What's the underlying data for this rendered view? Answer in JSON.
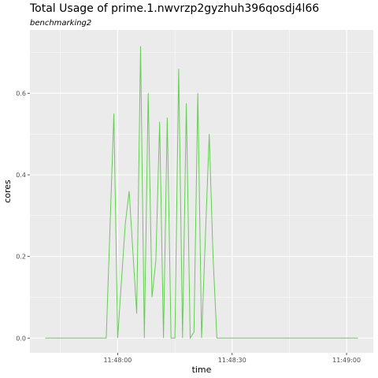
{
  "chart_data": {
    "type": "line",
    "title": "Total Usage of prime.1.nwvrzp2gyzhuh396qosdj4l66",
    "subtitle": "benchmarking2",
    "xlabel": "time",
    "ylabel": "cores",
    "x_ticks": [
      "11:48:00",
      "11:48:30",
      "11:49:00"
    ],
    "y_ticks": [
      "0.0",
      "0.2",
      "0.4",
      "0.6"
    ],
    "xlim": [
      "11:47:37",
      "11:49:07"
    ],
    "ylim": [
      -0.036,
      0.755
    ],
    "grid": true,
    "legend": "none",
    "series_color": "#66cc55",
    "panel_color": "#ebebeb",
    "series": [
      {
        "x": [
          "11:47:41",
          "11:47:57",
          "11:47:59",
          "11:48:00",
          "11:48:02",
          "11:48:03",
          "11:48:05",
          "11:48:06",
          "11:48:07",
          "11:48:08",
          "11:48:09",
          "11:48:10",
          "11:48:11",
          "11:48:12",
          "11:48:13",
          "11:48:14",
          "11:48:15",
          "11:48:16",
          "11:48:17",
          "11:48:18",
          "11:48:19",
          "11:48:20",
          "11:48:21",
          "11:48:22",
          "11:48:24",
          "11:48:25",
          "11:48:26",
          "11:48:28",
          "11:48:30",
          "11:48:32",
          "11:48:33",
          "11:48:50",
          "11:49:03"
        ],
        "y": [
          0.0,
          0.0,
          0.55,
          0.0,
          0.28,
          0.36,
          0.06,
          0.715,
          0.0,
          0.6,
          0.1,
          0.19,
          0.53,
          0.0,
          0.54,
          0.0,
          0.0,
          0.66,
          0.0,
          0.575,
          0.0,
          0.015,
          0.6,
          0.0,
          0.5,
          0.2,
          0.0,
          0.0,
          0.0,
          0.0,
          0.0,
          0.0,
          0.0
        ]
      }
    ]
  }
}
